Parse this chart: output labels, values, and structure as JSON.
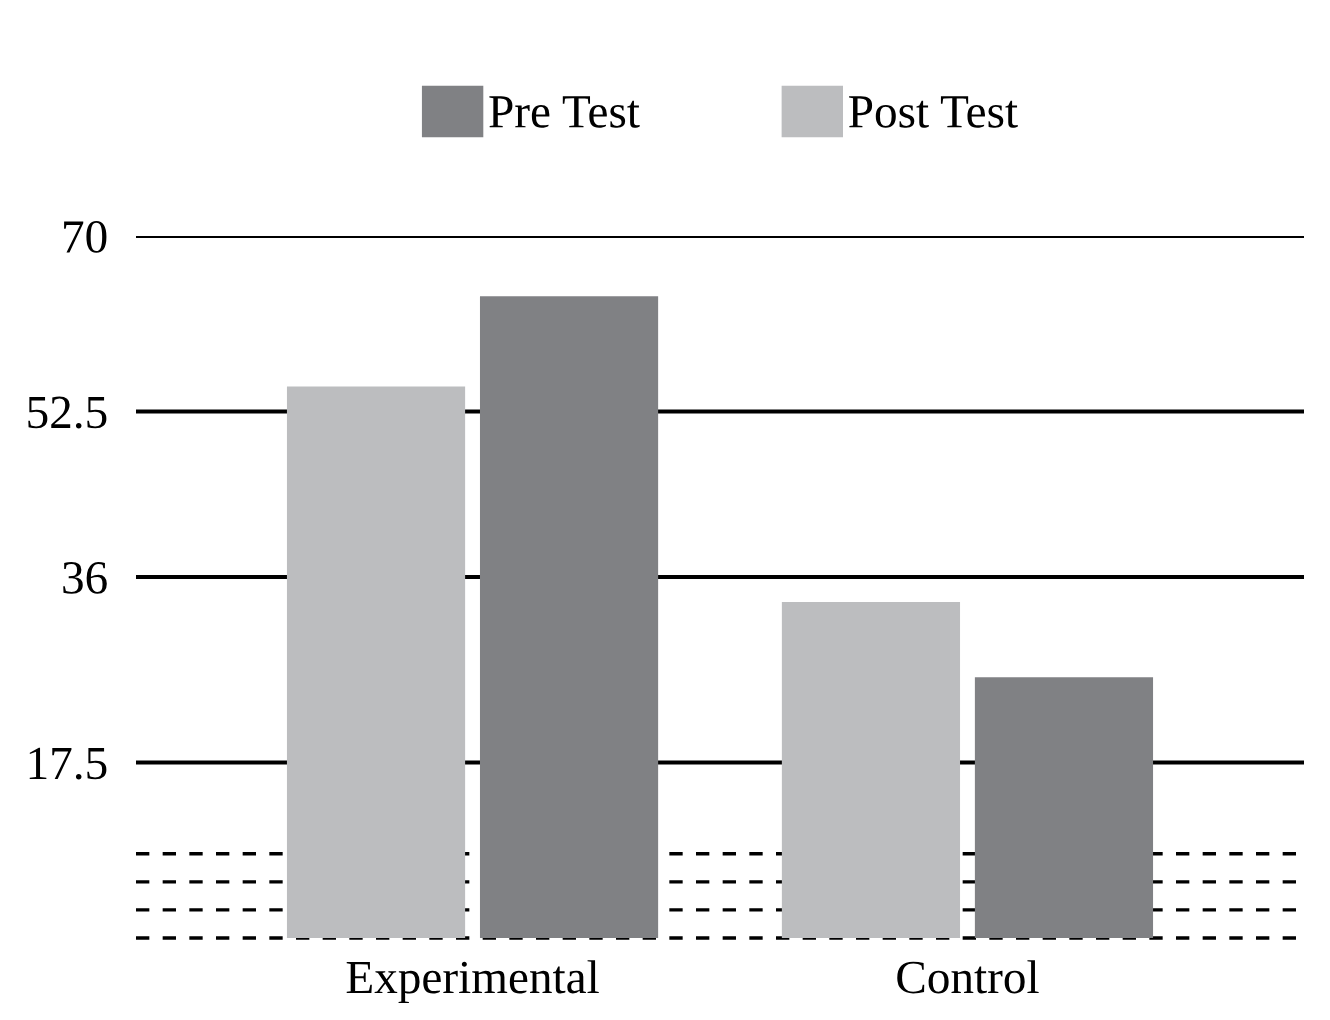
{
  "chart_data": {
    "type": "bar",
    "categories": [
      "Experimental",
      "Control"
    ],
    "series": [
      {
        "name": "Post Test",
        "color": "#bcbdbf",
        "values": [
          55,
          33.5
        ]
      },
      {
        "name": "Pre Test",
        "color": "#808184",
        "values": [
          64,
          26
        ]
      }
    ],
    "ylim": [
      0,
      70
    ],
    "yticks": [
      17.5,
      36,
      52.5,
      70
    ],
    "grid": "y",
    "legend": "top",
    "ref_lines": [
      {
        "axis": "y",
        "value": 0,
        "line_style": "dashed",
        "color": "#000000"
      },
      {
        "axis": "y",
        "value": 2.8,
        "line_style": "dashed",
        "color": "#000000"
      },
      {
        "axis": "y",
        "value": 5.6,
        "line_style": "dashed",
        "color": "#000000"
      },
      {
        "axis": "y",
        "value": 8.4,
        "line_style": "dashed",
        "color": "#000000"
      }
    ]
  }
}
